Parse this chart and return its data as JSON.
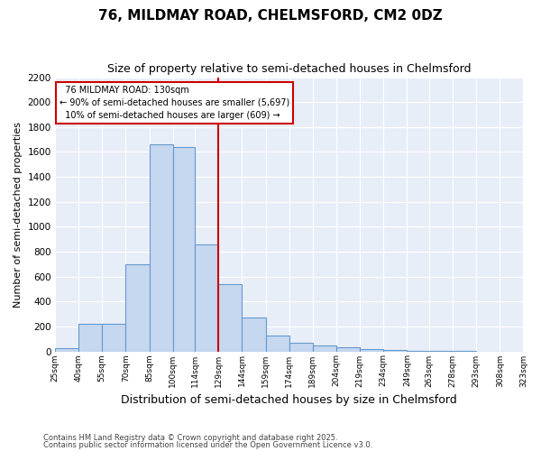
{
  "title": "76, MILDMAY ROAD, CHELMSFORD, CM2 0DZ",
  "subtitle": "Size of property relative to semi-detached houses in Chelmsford",
  "xlabel": "Distribution of semi-detached houses by size in Chelmsford",
  "ylabel": "Number of semi-detached properties",
  "footnote1": "Contains HM Land Registry data © Crown copyright and database right 2025.",
  "footnote2": "Contains public sector information licensed under the Open Government Licence v3.0.",
  "bin_labels": [
    "25sqm",
    "40sqm",
    "55sqm",
    "70sqm",
    "85sqm",
    "100sqm",
    "114sqm",
    "129sqm",
    "144sqm",
    "159sqm",
    "174sqm",
    "189sqm",
    "204sqm",
    "219sqm",
    "234sqm",
    "249sqm",
    "263sqm",
    "278sqm",
    "293sqm",
    "308sqm",
    "323sqm"
  ],
  "bin_edges": [
    25,
    40,
    55,
    70,
    85,
    100,
    114,
    129,
    144,
    159,
    174,
    189,
    204,
    219,
    234,
    249,
    263,
    278,
    293,
    308,
    323
  ],
  "bar_values": [
    25,
    220,
    220,
    700,
    1660,
    1640,
    860,
    540,
    270,
    130,
    70,
    50,
    30,
    18,
    8,
    4,
    2,
    1,
    0,
    0
  ],
  "property_size": 129,
  "property_label": "76 MILDMAY ROAD: 130sqm",
  "pct_smaller": 90,
  "n_smaller": 5697,
  "pct_larger": 10,
  "n_larger": 609,
  "vline_color": "#cc0000",
  "bar_fill_color": "#c5d8f0",
  "bar_edge_color": "#6699cc",
  "bg_color": "#e8eef8",
  "ylim": [
    0,
    2200
  ],
  "yticks": [
    0,
    200,
    400,
    600,
    800,
    1000,
    1200,
    1400,
    1600,
    1800,
    2000,
    2200
  ]
}
